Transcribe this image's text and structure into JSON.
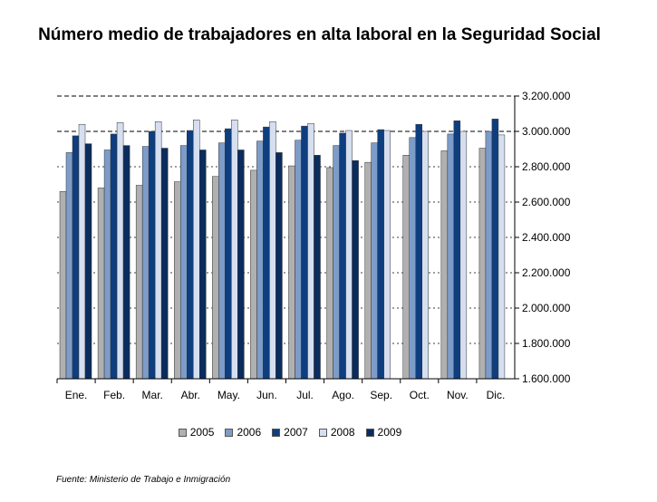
{
  "chart_data": {
    "type": "bar",
    "title": "Número medio de trabajadores en alta laboral en la Seguridad Social",
    "categories": [
      "Ene.",
      "Feb.",
      "Mar.",
      "Abr.",
      "May.",
      "Jun.",
      "Jul.",
      "Ago.",
      "Sep.",
      "Oct.",
      "Nov.",
      "Dic."
    ],
    "series": [
      {
        "name": "2005",
        "color": "#b0b0b0",
        "values": [
          2660000,
          2680000,
          2695000,
          2715000,
          2745000,
          2780000,
          2805000,
          2795000,
          2825000,
          2865000,
          2890000,
          2905000
        ]
      },
      {
        "name": "2006",
        "color": "#7e9cc8",
        "values": [
          2880000,
          2895000,
          2915000,
          2920000,
          2935000,
          2945000,
          2950000,
          2920000,
          2935000,
          2965000,
          2985000,
          3000000
        ]
      },
      {
        "name": "2007",
        "color": "#0e3e7e",
        "values": [
          2975000,
          2985000,
          3000000,
          3005000,
          3015000,
          3025000,
          3030000,
          2990000,
          3010000,
          3040000,
          3060000,
          3070000
        ]
      },
      {
        "name": "2008",
        "color": "#d6dff0",
        "values": [
          3040000,
          3050000,
          3055000,
          3065000,
          3065000,
          3055000,
          3045000,
          3005000,
          3005000,
          3000000,
          3000000,
          2980000
        ]
      },
      {
        "name": "2009",
        "color": "#0a2c5e",
        "values": [
          2930000,
          2920000,
          2905000,
          2895000,
          2895000,
          2880000,
          2865000,
          2835000,
          null,
          null,
          null,
          null
        ]
      }
    ],
    "ylim": [
      1600000,
      3200000
    ],
    "yticks": [
      1600000,
      1800000,
      2000000,
      2200000,
      2400000,
      2600000,
      2800000,
      3000000,
      3200000
    ],
    "ytick_labels": [
      "1.600.000",
      "1.800.000",
      "2.000.000",
      "2.200.000",
      "2.400.000",
      "2.600.000",
      "2.800.000",
      "3.000.000",
      "3.200.000"
    ],
    "y_axis_position": "right",
    "grid": true,
    "legend_position": "bottom"
  },
  "source": "Fuente: Ministerio de Trabajo e Inmigración"
}
